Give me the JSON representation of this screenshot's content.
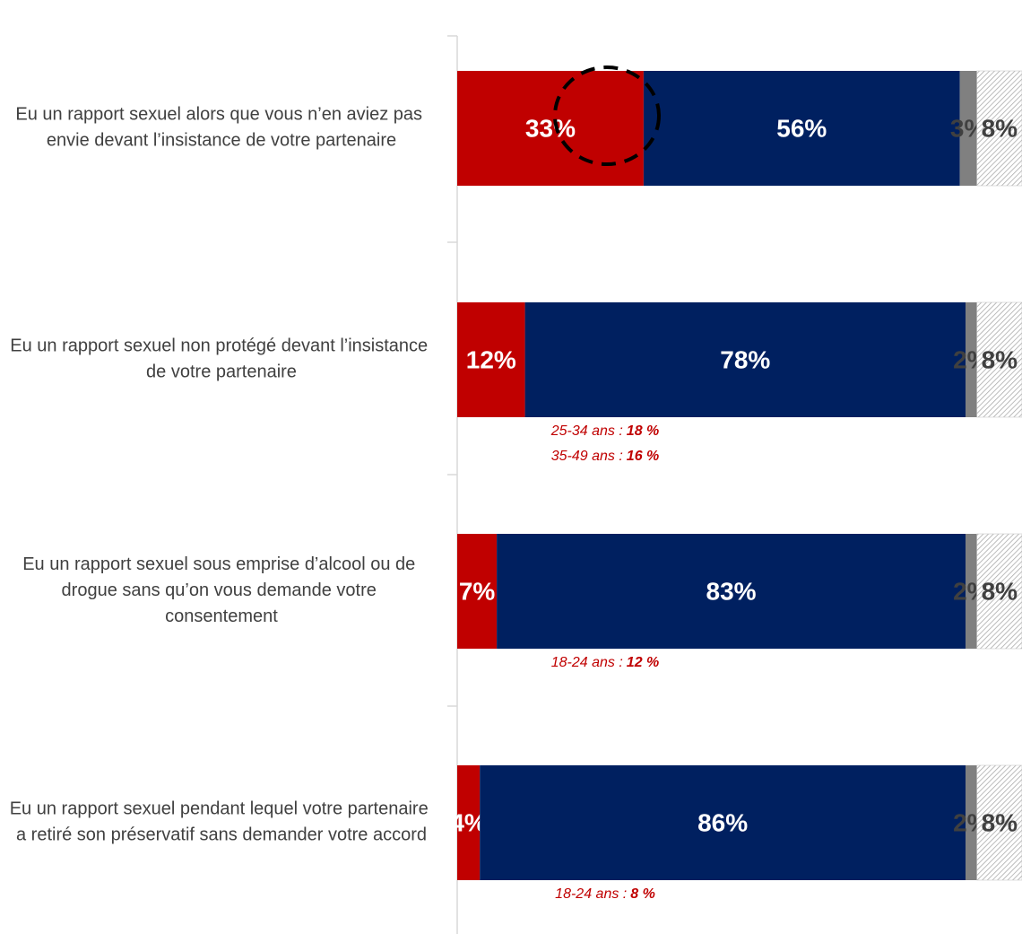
{
  "chart_data": {
    "type": "stacked-bar-horizontal",
    "categories": [
      "Eu un rapport sexuel alors que vous n’en aviez pas envie devant l’insistance de votre partenaire",
      "Eu un rapport sexuel non protégé devant l’insistance de votre partenaire",
      "Eu un rapport sexuel sous emprise d’alcool ou de drogue sans qu’on vous demande votre consentement",
      "Eu un rapport sexuel pendant lequel votre partenaire a retiré son préservatif sans demander votre accord"
    ],
    "series": [
      {
        "color": "#c00000",
        "values": [
          33,
          12,
          7,
          4
        ],
        "value_labels": [
          "33%",
          "12%",
          "7%",
          "4%"
        ]
      },
      {
        "color": "#002060",
        "values": [
          56,
          78,
          83,
          86
        ],
        "value_labels": [
          "56%",
          "78%",
          "83%",
          "86%"
        ]
      },
      {
        "color": "#808080",
        "values": [
          3,
          2,
          2,
          2
        ],
        "value_labels": [
          "3%",
          "2%",
          "2%",
          "2%"
        ]
      },
      {
        "color": "#bfbfbf",
        "pattern": "hatch",
        "values": [
          8,
          8,
          8,
          8
        ],
        "value_labels": [
          "8%",
          "8%",
          "8%",
          "8%"
        ]
      }
    ],
    "xlim": [
      0,
      100
    ],
    "notes": [
      [],
      [
        {
          "text": "25-34 ans :",
          "value": "18 %"
        },
        {
          "text": "35-49 ans :",
          "value": "16 %"
        }
      ],
      [
        {
          "text": "18-24 ans :",
          "value": "12 %"
        }
      ],
      [
        {
          "text": "18-24 ans :",
          "value": "8 %"
        }
      ]
    ]
  }
}
